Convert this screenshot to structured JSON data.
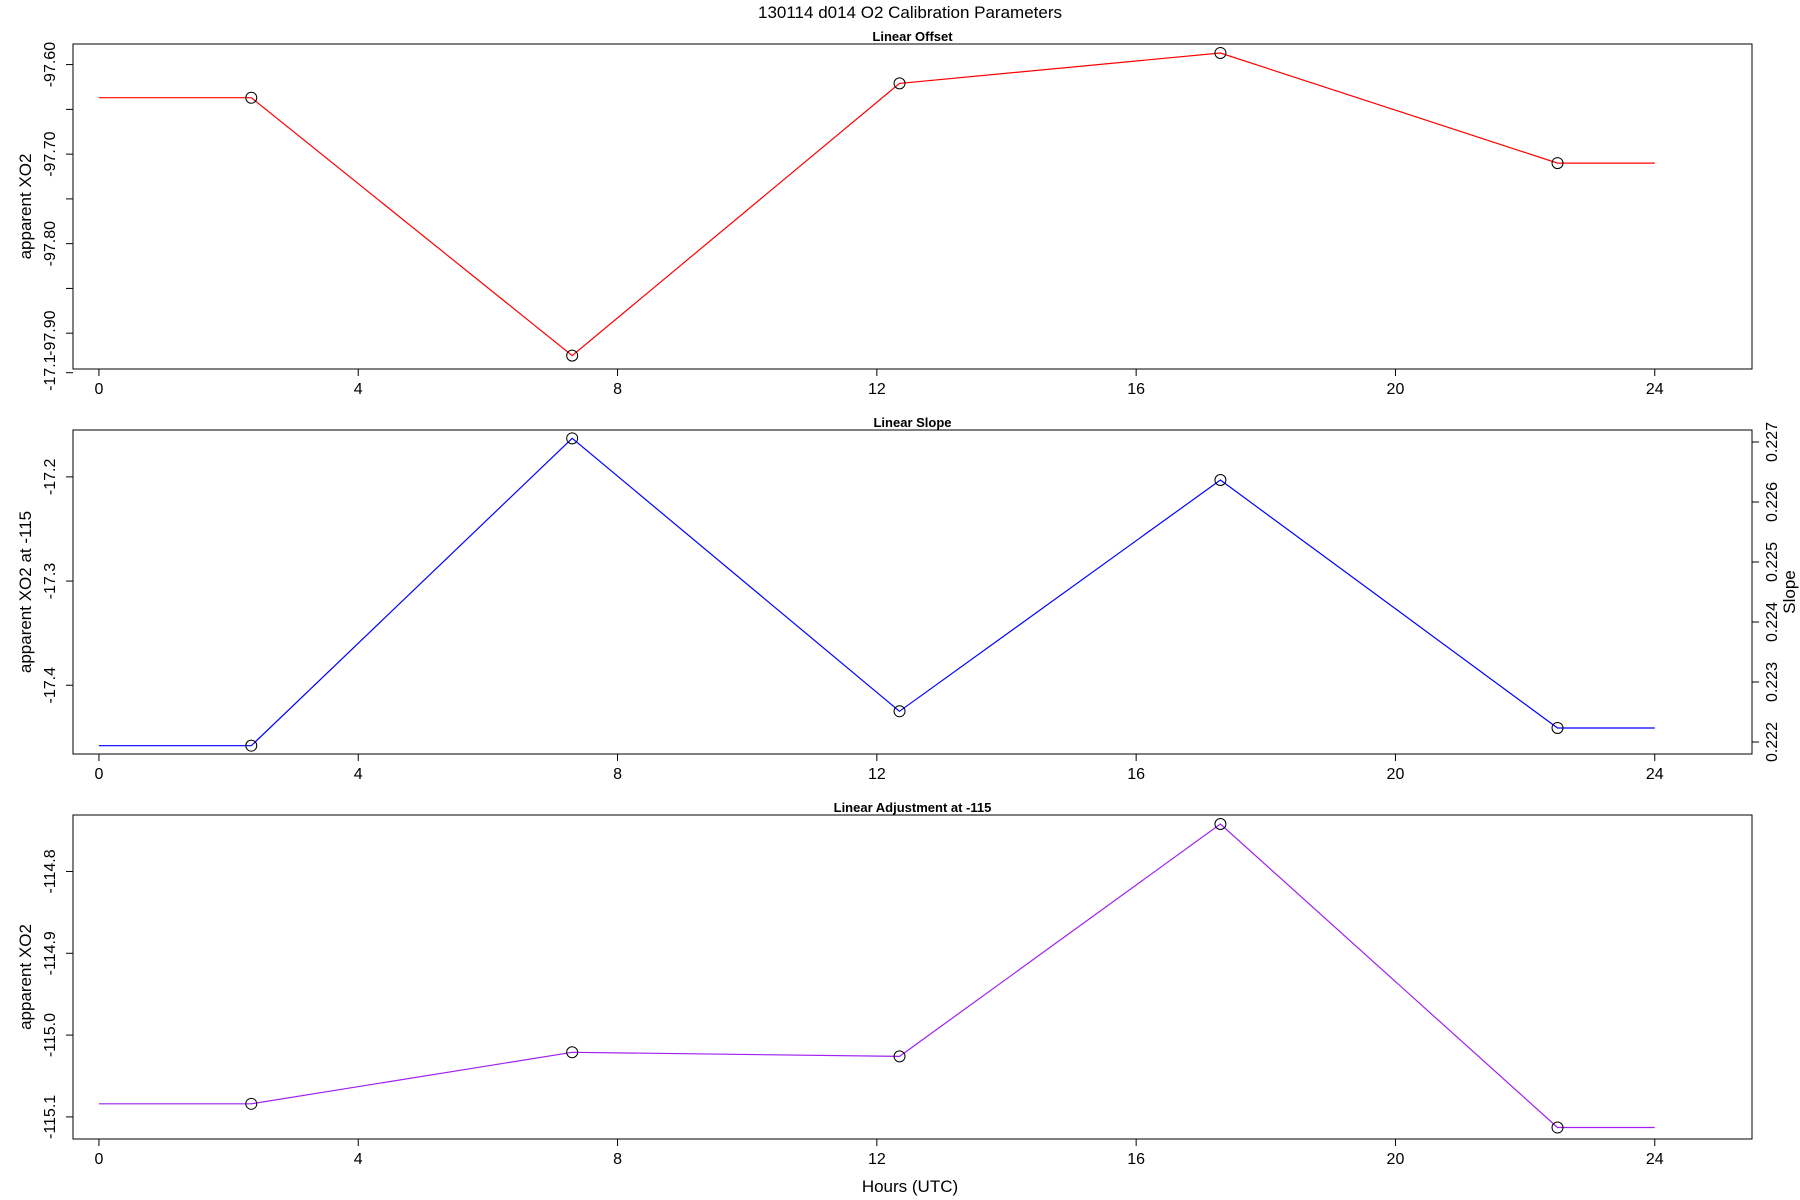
{
  "title": "130114   d014   O2 Calibration Parameters",
  "xlabel": "Hours (UTC)",
  "chart_data": [
    {
      "type": "line",
      "title": "Linear Offset",
      "ylabel": "apparent XO2",
      "x": [
        0,
        2.35,
        7.3,
        12.35,
        17.3,
        22.5,
        24
      ],
      "values": [
        -97.637,
        -97.637,
        -97.925,
        -97.621,
        -97.587,
        -97.71,
        -97.71
      ],
      "markers": [
        false,
        true,
        true,
        true,
        true,
        true,
        false
      ],
      "color": "#ff0000",
      "xlim": [
        -0.4,
        25.5
      ],
      "ylim": [
        -97.94,
        -97.577
      ],
      "xticks": [
        0,
        4,
        8,
        12,
        16,
        20,
        24
      ],
      "yticks": [
        -97.6,
        -97.7,
        -97.8,
        -97.9
      ],
      "yminor": [
        -97.65,
        -97.75,
        -97.85
      ],
      "ytick_labels": [
        "-97.60",
        "-97.70",
        "-97.80",
        "-97.90"
      ]
    },
    {
      "type": "line",
      "title": "Linear Slope",
      "ylabel": "apparent XO2 at -115",
      "y2label": "Slope",
      "x": [
        0,
        2.35,
        7.3,
        12.35,
        17.3,
        22.5,
        24
      ],
      "values": [
        -17.458,
        -17.458,
        -17.163,
        -17.425,
        -17.203,
        -17.441,
        -17.441
      ],
      "markers": [
        false,
        true,
        true,
        true,
        true,
        true,
        false
      ],
      "color": "#0000ff",
      "xlim": [
        -0.4,
        25.5
      ],
      "ylim": [
        -17.466,
        -17.155
      ],
      "xticks": [
        0,
        4,
        8,
        12,
        16,
        20,
        24
      ],
      "yticks": [
        -17.1,
        -17.2,
        -17.3,
        -17.4
      ],
      "ytick_labels": [
        "-17.1",
        "-17.2",
        "-17.3",
        "-17.4"
      ],
      "y2ticks": [
        0.222,
        0.223,
        0.224,
        0.225,
        0.226,
        0.227
      ],
      "y2tick_labels": [
        "0.222",
        "0.223",
        "0.224",
        "0.225",
        "0.226",
        "0.227"
      ],
      "y2lim": [
        0.2218,
        0.2272
      ]
    },
    {
      "type": "line",
      "title": "Linear Adjustment at -115",
      "ylabel": "apparent XO2",
      "x": [
        0,
        2.35,
        7.3,
        12.35,
        17.3,
        22.5,
        24
      ],
      "values": [
        -115.084,
        -115.084,
        -115.021,
        -115.026,
        -114.742,
        -115.113,
        -115.113
      ],
      "markers": [
        false,
        true,
        true,
        true,
        true,
        true,
        false
      ],
      "color": "#a020f0",
      "xlim": [
        -0.4,
        25.5
      ],
      "ylim": [
        -115.127,
        -114.731
      ],
      "xticks": [
        0,
        4,
        8,
        12,
        16,
        20,
        24
      ],
      "yticks": [
        -114.8,
        -114.9,
        -115.0,
        -115.1
      ],
      "ytick_labels": [
        "-114.8",
        "-114.9",
        "-115.0",
        "-115.1"
      ]
    }
  ]
}
